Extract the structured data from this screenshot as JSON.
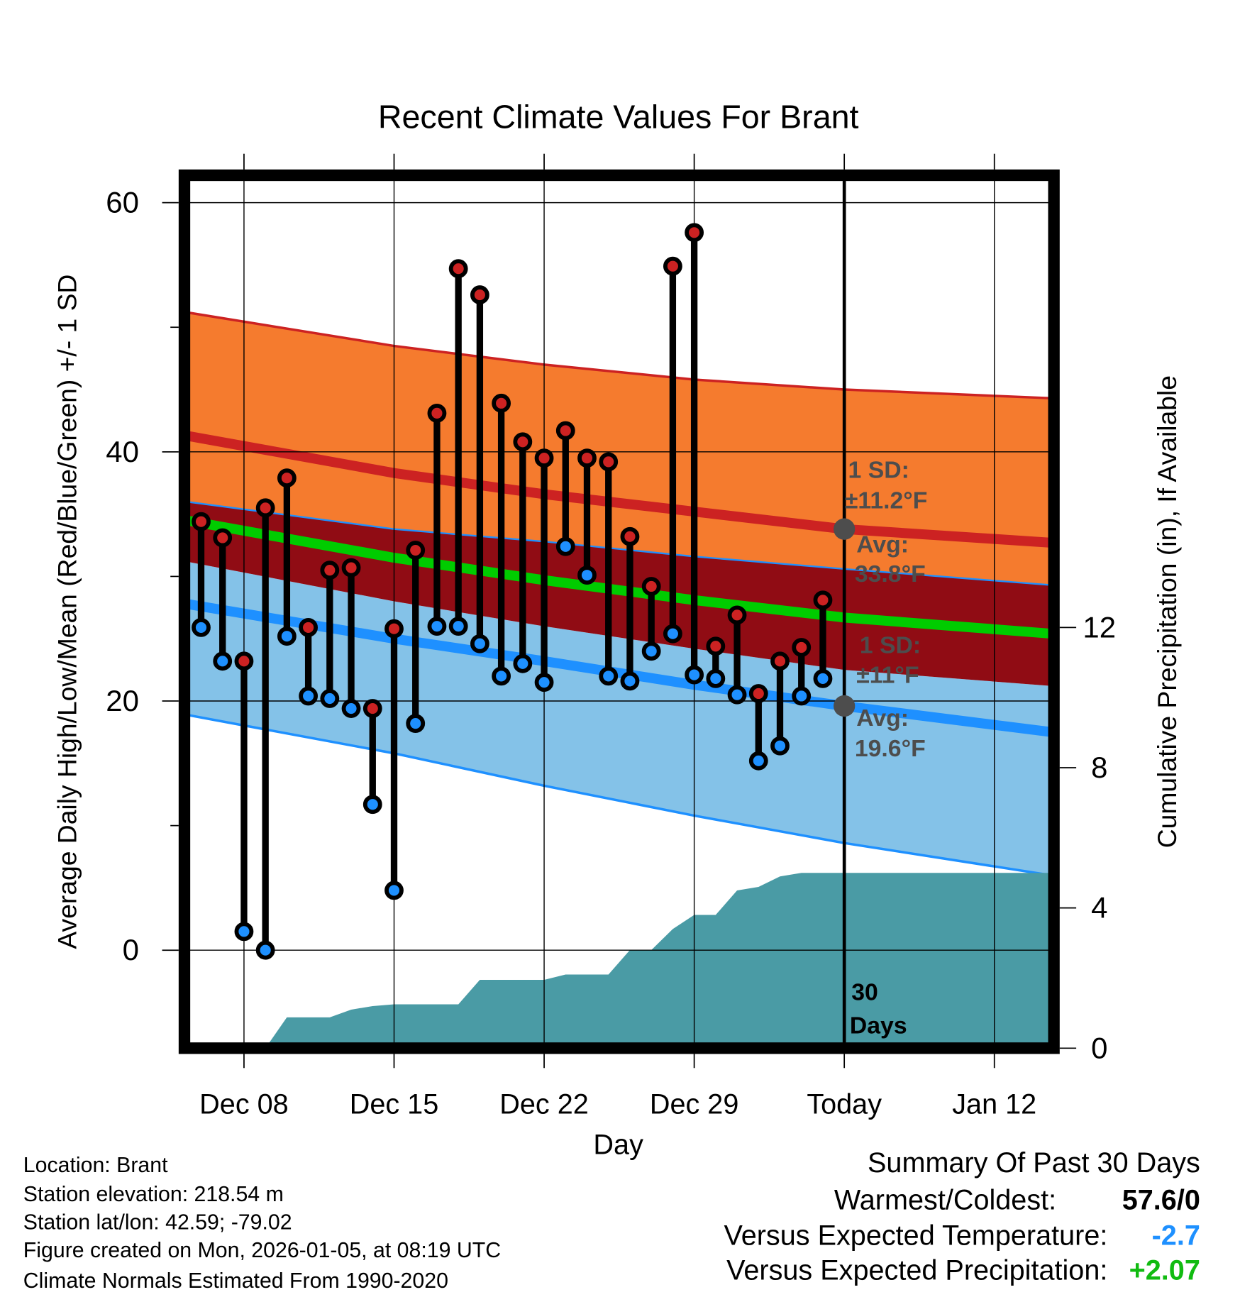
{
  "chart_data": {
    "type": "line",
    "title": "Recent Climate Values For Brant",
    "xlabel": "Day",
    "ylabel": "Average Daily High/Low/Mean (Red/Blue/Green) +/- 1 SD",
    "y2label": "Cumulative Precipitation (in), If Available",
    "x_ticks": [
      {
        "day": 0,
        "label": "Dec 08"
      },
      {
        "day": 7,
        "label": "Dec 15"
      },
      {
        "day": 14,
        "label": "Dec 22"
      },
      {
        "day": 21,
        "label": "Dec 29"
      },
      {
        "day": 28,
        "label": "Today"
      },
      {
        "day": 35,
        "label": "Jan 12"
      }
    ],
    "xlim": [
      -2.7,
      37.7
    ],
    "ylim": [
      -7.6,
      62.2
    ],
    "y_ticks": [
      0,
      20,
      40,
      60
    ],
    "y2lim": [
      0,
      24.9
    ],
    "y2_ticks": [
      0,
      4,
      8,
      12
    ],
    "grid": true,
    "days": [
      -2,
      -1,
      0,
      1,
      2,
      3,
      4,
      5,
      6,
      7,
      8,
      9,
      10,
      11,
      12,
      13,
      14,
      15,
      16,
      17,
      18,
      19,
      20,
      21,
      22,
      23,
      24,
      25,
      26,
      27
    ],
    "series": [
      {
        "name": "High",
        "color": "#cc2222",
        "values": [
          34.4,
          33.1,
          23.2,
          35.5,
          37.9,
          25.9,
          30.5,
          30.7,
          19.4,
          25.8,
          32.1,
          43.1,
          54.7,
          52.6,
          43.9,
          40.8,
          39.5,
          41.7,
          39.5,
          39.2,
          33.2,
          29.2,
          54.9,
          57.6,
          24.4,
          26.9,
          20.6,
          23.2,
          24.3,
          28.1
        ]
      },
      {
        "name": "Low",
        "color": "#1e90ff",
        "values": [
          25.9,
          23.2,
          1.5,
          0,
          25.2,
          20.4,
          20.2,
          19.4,
          11.7,
          4.8,
          18.2,
          26.0,
          26.0,
          24.6,
          22.0,
          23.0,
          21.5,
          32.4,
          30.1,
          22.0,
          21.6,
          24.0,
          25.4,
          22.1,
          21.8,
          20.5,
          15.2,
          16.4,
          20.4,
          21.8
        ]
      },
      {
        "name": "Cumulative Precipitation",
        "color": "#4a9ba5",
        "values": [
          0,
          0,
          0,
          0,
          0.88,
          0.88,
          0.88,
          1.1,
          1.2,
          1.25,
          1.25,
          1.25,
          1.25,
          1.95,
          1.95,
          1.95,
          1.95,
          2.1,
          2.1,
          2.1,
          2.8,
          2.8,
          3.4,
          3.8,
          3.8,
          4.5,
          4.6,
          4.9,
          5.0,
          5.0
        ]
      }
    ],
    "normals": {
      "days": [
        -2.7,
        7,
        14,
        21,
        28,
        37.7
      ],
      "high_plus_sd": [
        51.2,
        48.5,
        47.0,
        45.8,
        45.0,
        44.3
      ],
      "high_mean": [
        41.3,
        38.3,
        36.6,
        35.2,
        33.8,
        32.7
      ],
      "high_minus_sd": [
        36.0,
        33.8,
        32.8,
        31.6,
        30.6,
        29.3
      ],
      "mean": [
        34.5,
        31.5,
        29.7,
        28.1,
        26.7,
        25.4
      ],
      "low_plus_sd": [
        31.2,
        28.0,
        26.0,
        24.2,
        22.5,
        21.2
      ],
      "low_mean": [
        27.8,
        25.0,
        23.2,
        21.3,
        19.6,
        17.5
      ],
      "low_minus_sd": [
        18.9,
        15.8,
        13.2,
        10.8,
        8.6,
        6.0
      ]
    },
    "annotations": {
      "high_sd_label": "1 SD:",
      "high_sd_value": "±11.2°F",
      "high_avg_label": "Avg:",
      "high_avg_value": "33.8°F",
      "low_sd_label": "1 SD:",
      "low_sd_value": "±11°F",
      "low_avg_label": "Avg:",
      "low_avg_value": "19.6°F",
      "period_line1": "30",
      "period_line2": "Days"
    },
    "colors": {
      "high_band": "#f57b2e",
      "mid_band": "#900c14",
      "low_band": "#84c2e8",
      "high_line": "#cc2222",
      "mean_line": "#00cc00",
      "low_line": "#1e90ff",
      "precip": "#4a9ba5"
    }
  },
  "info": {
    "location": "Location: Brant",
    "elevation": "Station elevation: 218.54 m",
    "latlon": "Station lat/lon: 42.59; -79.02",
    "created": "Figure created on Mon, 2026-01-05, at 08:19 UTC",
    "normals": "Climate Normals Estimated From 1990-2020"
  },
  "summary": {
    "title": "Summary Of Past 30 Days",
    "warmest_label": "Warmest/Coldest:",
    "warmest_value": "57.6/0",
    "temp_label": "Versus Expected Temperature:",
    "temp_value": "-2.7",
    "temp_color": "#1e90ff",
    "precip_label": "Versus Expected Precipitation:",
    "precip_value": "+2.07",
    "precip_color": "#11bb11"
  }
}
